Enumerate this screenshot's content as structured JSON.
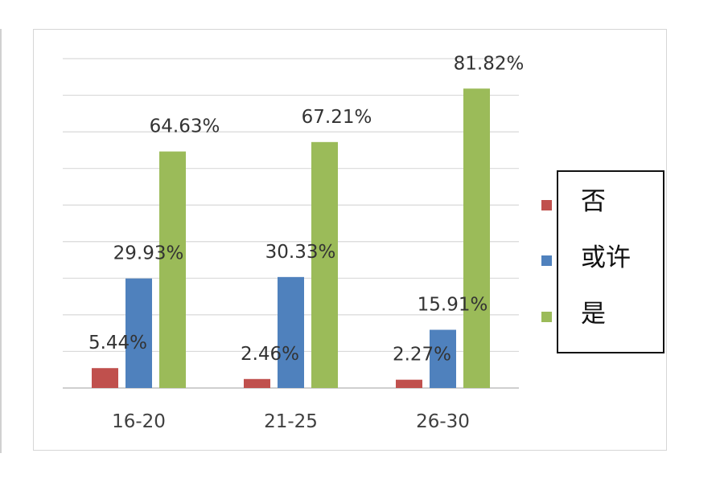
{
  "chart_data": {
    "type": "bar",
    "title": "",
    "xlabel": "",
    "ylabel": "",
    "categories": [
      "16-20",
      "21-25",
      "26-30"
    ],
    "ylim": [
      0,
      90
    ],
    "grid": true,
    "legend": "right",
    "series": [
      {
        "name": "否",
        "color": "#c0504d",
        "values": [
          5.44,
          2.46,
          2.27
        ],
        "labels": [
          "5.44%",
          "2.46%",
          "2.27%"
        ]
      },
      {
        "name": "或许",
        "color": "#4f81bd",
        "values": [
          29.93,
          30.33,
          15.91
        ],
        "labels": [
          "29.93%",
          "30.33%",
          "15.91%"
        ]
      },
      {
        "name": "是",
        "color": "#9bbb59",
        "values": [
          64.63,
          67.21,
          81.82
        ],
        "labels": [
          "64.63%",
          "67.21%",
          "81.82%"
        ]
      }
    ]
  }
}
